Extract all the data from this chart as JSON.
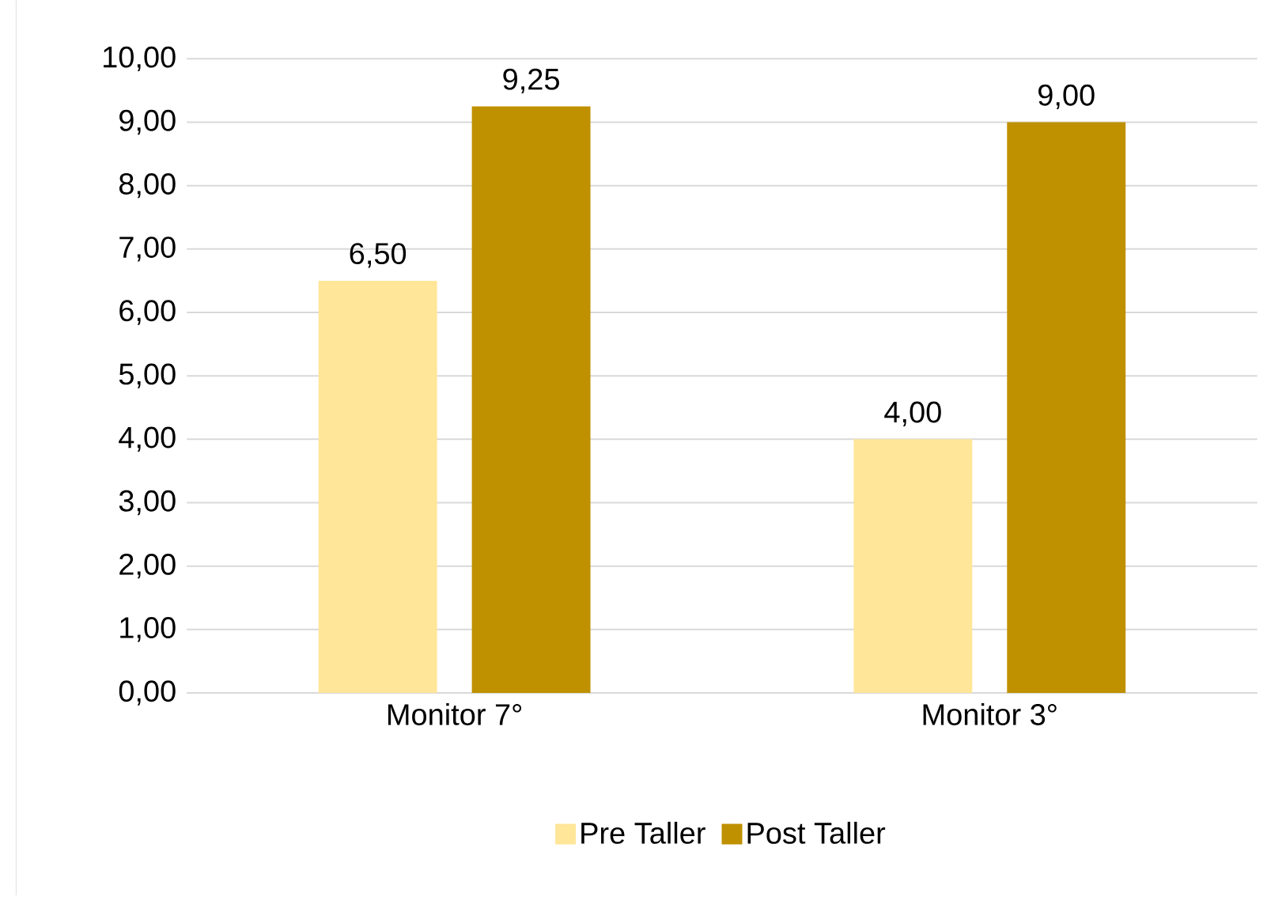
{
  "chart_data": {
    "type": "bar",
    "categories": [
      "Monitor 7°",
      "Monitor 3°"
    ],
    "series": [
      {
        "name": "Pre Taller",
        "color": "#ffe699",
        "values": [
          6.5,
          4.0
        ],
        "value_labels": [
          "6,50",
          "4,00"
        ]
      },
      {
        "name": "Post Taller",
        "color": "#bf9000",
        "values": [
          9.25,
          9.0
        ],
        "value_labels": [
          "9,25",
          "9,00"
        ]
      }
    ],
    "ylim": [
      0,
      10
    ],
    "yticks": [
      {
        "value": 0,
        "label": "0,00"
      },
      {
        "value": 1,
        "label": "1,00"
      },
      {
        "value": 2,
        "label": "2,00"
      },
      {
        "value": 3,
        "label": "3,00"
      },
      {
        "value": 4,
        "label": "4,00"
      },
      {
        "value": 5,
        "label": "5,00"
      },
      {
        "value": 6,
        "label": "6,00"
      },
      {
        "value": 7,
        "label": "7,00"
      },
      {
        "value": 8,
        "label": "8,00"
      },
      {
        "value": 9,
        "label": "9,00"
      },
      {
        "value": 10,
        "label": "10,00"
      }
    ],
    "grid": "y",
    "legend": "bottom"
  }
}
